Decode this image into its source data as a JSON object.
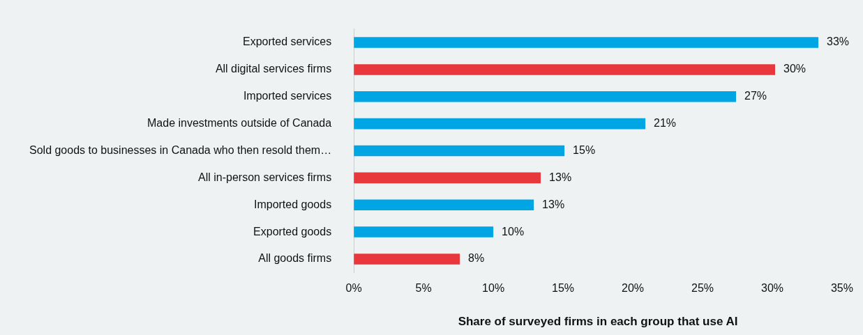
{
  "chart_data": {
    "type": "bar",
    "orientation": "horizontal",
    "xlabel": "Share of surveyed firms in each group that use AI",
    "categories": [
      "Exported services",
      "All digital services firms",
      "Imported services",
      "Made investments outside of Canada",
      "Sold goods to businesses in Canada who then resold them…",
      "All in-person services firms",
      "Imported goods",
      "Exported goods",
      "All goods firms"
    ],
    "values": [
      33.3,
      30.2,
      27.4,
      20.9,
      15.1,
      13.4,
      12.9,
      10.0,
      7.6
    ],
    "value_labels": [
      "33%",
      "30%",
      "27%",
      "21%",
      "15%",
      "13%",
      "13%",
      "10%",
      "8%"
    ],
    "colors": [
      "#00a6e4",
      "#e8383d",
      "#00a6e4",
      "#00a6e4",
      "#00a6e4",
      "#e8383d",
      "#00a6e4",
      "#00a6e4",
      "#e8383d"
    ],
    "xlim": [
      0,
      35
    ],
    "xticks": [
      {
        "value": 0,
        "label": "0%"
      },
      {
        "value": 5,
        "label": "5%"
      },
      {
        "value": 10,
        "label": "10%"
      },
      {
        "value": 15,
        "label": "15%"
      },
      {
        "value": 20,
        "label": "20%"
      },
      {
        "value": 25,
        "label": "25%"
      },
      {
        "value": 30,
        "label": "30%"
      },
      {
        "value": 35,
        "label": "35%"
      }
    ],
    "grid": false,
    "legend": false
  }
}
